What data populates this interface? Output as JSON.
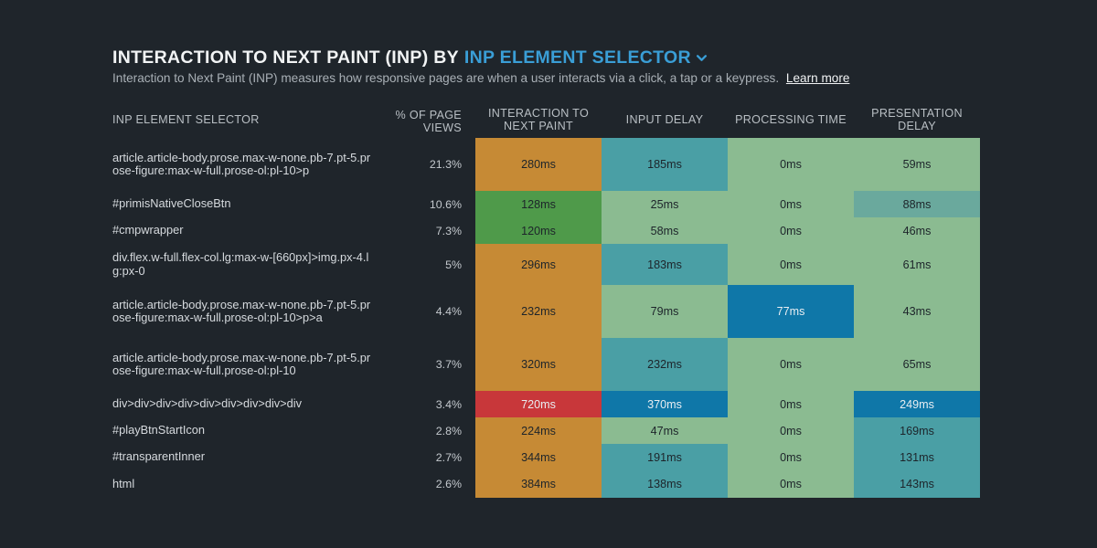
{
  "header": {
    "title_main": "INTERACTION TO NEXT PAINT (INP) BY",
    "title_dimension": "INP ELEMENT SELECTOR",
    "subtitle": "Interaction to Next Paint (INP) measures how responsive pages are when a user interacts via a click, a tap or a keypress.",
    "learn_more": "Learn more"
  },
  "columns": {
    "selector": "INP ELEMENT SELECTOR",
    "page_views": "% OF PAGE VIEWS",
    "inp": "INTERACTION TO NEXT PAINT",
    "input_delay": "INPUT DELAY",
    "processing_time": "PROCESSING TIME",
    "presentation_delay": "PRESENTATION DELAY"
  },
  "colors": {
    "background": "#1f252b",
    "accent": "#3a9ed6",
    "inp_good": "#4f9a4a",
    "inp_needs_improvement": "#c68a35",
    "inp_poor": "#c8373a",
    "subpart_low": "#8bbb91",
    "subpart_mid": "#6aa99d",
    "subpart_high": "#4a9fa5",
    "subpart_very_high": "#0f77a8"
  },
  "rows": [
    {
      "selector": "article.article-body.prose.max-w-none.pb-7.pt-5.prose-figure:max-w-full.prose-ol:pl-10>p",
      "page_views": "21.3%",
      "inp": "280ms",
      "input_delay": "185ms",
      "processing_time": "0ms",
      "presentation_delay": "59ms"
    },
    {
      "selector": "#primisNativeCloseBtn",
      "page_views": "10.6%",
      "inp": "128ms",
      "input_delay": "25ms",
      "processing_time": "0ms",
      "presentation_delay": "88ms"
    },
    {
      "selector": "#cmpwrapper",
      "page_views": "7.3%",
      "inp": "120ms",
      "input_delay": "58ms",
      "processing_time": "0ms",
      "presentation_delay": "46ms"
    },
    {
      "selector": "div.flex.w-full.flex-col.lg:max-w-[660px]>img.px-4.lg:px-0",
      "page_views": "5%",
      "inp": "296ms",
      "input_delay": "183ms",
      "processing_time": "0ms",
      "presentation_delay": "61ms"
    },
    {
      "selector": "article.article-body.prose.max-w-none.pb-7.pt-5.prose-figure:max-w-full.prose-ol:pl-10>p>a",
      "page_views": "4.4%",
      "inp": "232ms",
      "input_delay": "79ms",
      "processing_time": "77ms",
      "presentation_delay": "43ms"
    },
    {
      "selector": "article.article-body.prose.max-w-none.pb-7.pt-5.prose-figure:max-w-full.prose-ol:pl-10",
      "page_views": "3.7%",
      "inp": "320ms",
      "input_delay": "232ms",
      "processing_time": "0ms",
      "presentation_delay": "65ms"
    },
    {
      "selector": "div>div>div>div>div>div>div>div>div",
      "page_views": "3.4%",
      "inp": "720ms",
      "input_delay": "370ms",
      "processing_time": "0ms",
      "presentation_delay": "249ms"
    },
    {
      "selector": "#playBtnStartIcon",
      "page_views": "2.8%",
      "inp": "224ms",
      "input_delay": "47ms",
      "processing_time": "0ms",
      "presentation_delay": "169ms"
    },
    {
      "selector": "#transparentInner",
      "page_views": "2.7%",
      "inp": "344ms",
      "input_delay": "191ms",
      "processing_time": "0ms",
      "presentation_delay": "131ms"
    },
    {
      "selector": "html",
      "page_views": "2.6%",
      "inp": "384ms",
      "input_delay": "138ms",
      "processing_time": "0ms",
      "presentation_delay": "143ms"
    }
  ]
}
